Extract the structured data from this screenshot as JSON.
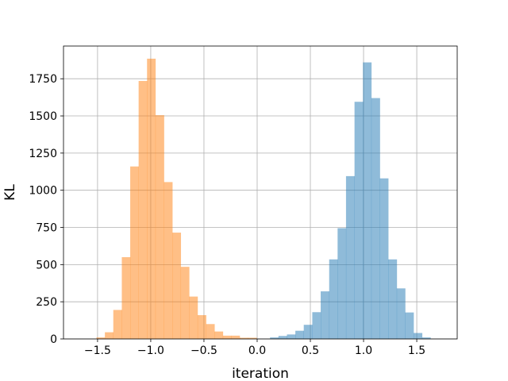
{
  "chart_data": {
    "type": "histogram",
    "xlabel": "iteration",
    "ylabel": "KL",
    "xlim": [
      -1.82,
      1.88
    ],
    "ylim": [
      0,
      1970
    ],
    "grid": true,
    "x_ticks": [
      -1.5,
      -1.0,
      -0.5,
      0.0,
      0.5,
      1.0,
      1.5
    ],
    "x_tick_labels": [
      "−1.5",
      "−1.0",
      "−0.5",
      "0.0",
      "0.5",
      "1.0",
      "1.5"
    ],
    "y_ticks": [
      0,
      250,
      500,
      750,
      1000,
      1250,
      1500,
      1750
    ],
    "y_tick_labels": [
      "0",
      "250",
      "500",
      "750",
      "1000",
      "1250",
      "1500",
      "1750"
    ],
    "series": [
      {
        "color": "#1f77b4",
        "bins": [
          {
            "x0": 0.121,
            "x1": 0.2,
            "value": 10
          },
          {
            "x0": 0.2,
            "x1": 0.28,
            "value": 20
          },
          {
            "x0": 0.28,
            "x1": 0.359,
            "value": 30
          },
          {
            "x0": 0.359,
            "x1": 0.438,
            "value": 55
          },
          {
            "x0": 0.438,
            "x1": 0.518,
            "value": 95
          },
          {
            "x0": 0.518,
            "x1": 0.597,
            "value": 180
          },
          {
            "x0": 0.597,
            "x1": 0.677,
            "value": 320
          },
          {
            "x0": 0.677,
            "x1": 0.756,
            "value": 535
          },
          {
            "x0": 0.756,
            "x1": 0.835,
            "value": 745
          },
          {
            "x0": 0.835,
            "x1": 0.915,
            "value": 1095
          },
          {
            "x0": 0.915,
            "x1": 0.994,
            "value": 1595
          },
          {
            "x0": 0.994,
            "x1": 1.073,
            "value": 1860
          },
          {
            "x0": 1.073,
            "x1": 1.153,
            "value": 1620
          },
          {
            "x0": 1.153,
            "x1": 1.232,
            "value": 1080
          },
          {
            "x0": 1.232,
            "x1": 1.312,
            "value": 535
          },
          {
            "x0": 1.312,
            "x1": 1.391,
            "value": 340
          },
          {
            "x0": 1.391,
            "x1": 1.47,
            "value": 178
          },
          {
            "x0": 1.47,
            "x1": 1.55,
            "value": 40
          },
          {
            "x0": 1.55,
            "x1": 1.629,
            "value": 10
          }
        ]
      },
      {
        "color": "#ff7f0e",
        "bins": [
          {
            "x0": -1.51,
            "x1": -1.431,
            "value": 10
          },
          {
            "x0": -1.431,
            "x1": -1.352,
            "value": 45
          },
          {
            "x0": -1.352,
            "x1": -1.272,
            "value": 195
          },
          {
            "x0": -1.272,
            "x1": -1.193,
            "value": 550
          },
          {
            "x0": -1.193,
            "x1": -1.114,
            "value": 1160
          },
          {
            "x0": -1.114,
            "x1": -1.035,
            "value": 1735
          },
          {
            "x0": -1.035,
            "x1": -0.956,
            "value": 1885
          },
          {
            "x0": -0.956,
            "x1": -0.876,
            "value": 1505
          },
          {
            "x0": -0.876,
            "x1": -0.797,
            "value": 1055
          },
          {
            "x0": -0.797,
            "x1": -0.718,
            "value": 715
          },
          {
            "x0": -0.718,
            "x1": -0.639,
            "value": 485
          },
          {
            "x0": -0.639,
            "x1": -0.56,
            "value": 285
          },
          {
            "x0": -0.56,
            "x1": -0.48,
            "value": 160
          },
          {
            "x0": -0.48,
            "x1": -0.401,
            "value": 100
          },
          {
            "x0": -0.401,
            "x1": -0.322,
            "value": 50
          },
          {
            "x0": -0.322,
            "x1": -0.243,
            "value": 22
          },
          {
            "x0": -0.243,
            "x1": -0.164,
            "value": 22
          },
          {
            "x0": -0.164,
            "x1": -0.084,
            "value": 8
          },
          {
            "x0": -0.084,
            "x1": -0.005,
            "value": 8
          }
        ]
      }
    ]
  }
}
